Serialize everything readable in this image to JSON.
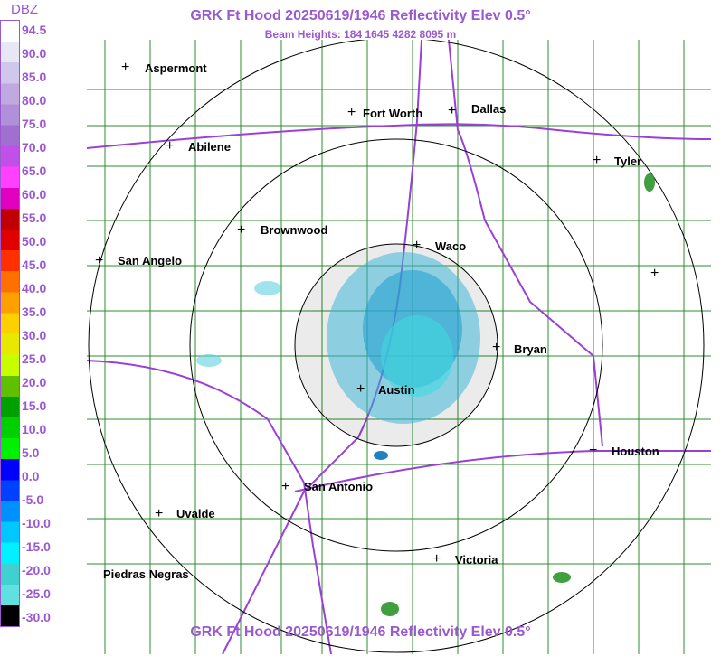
{
  "title": "GRK Ft Hood 20250619/1946 Reflectivity Elev 0.5°",
  "beam_heights": "Beam Heights: 184 1645 4282 8095 m",
  "legend": {
    "title": "DBZ",
    "labels": [
      "94.5",
      "90.0",
      "85.0",
      "80.0",
      "75.0",
      "70.0",
      "65.0",
      "60.0",
      "55.0",
      "50.0",
      "45.0",
      "40.0",
      "35.0",
      "30.0",
      "25.0",
      "20.0",
      "15.0",
      "10.0",
      "5.0",
      "0.0",
      "-5.0",
      "-10.0",
      "-15.0",
      "-20.0",
      "-25.0",
      "-30.0"
    ],
    "colors": [
      "#ffffff",
      "#e8e8f4",
      "#d0c8ec",
      "#c0a8e0",
      "#b090d8",
      "#a070d0",
      "#c050e8",
      "#ff40ff",
      "#e000c0",
      "#c00000",
      "#e00000",
      "#ff3000",
      "#ff7000",
      "#ffa000",
      "#ffd000",
      "#e8e800",
      "#c8ff00",
      "#60c000",
      "#00a000",
      "#00d000",
      "#00f000",
      "#0000ff",
      "#0040ff",
      "#0090ff",
      "#00c8ff",
      "#00f0ff",
      "#40d0d0",
      "#60e0e0",
      "#000000"
    ]
  },
  "cities": [
    "Aspermont",
    "Fort Worth",
    "Dallas",
    "Abilene",
    "Tyler",
    "Waco",
    "Brownwood",
    "San Angelo",
    "Bryan",
    "Austin",
    "Houston",
    "San Antonio",
    "Uvalde",
    "Victoria",
    "Piedras Negras"
  ]
}
